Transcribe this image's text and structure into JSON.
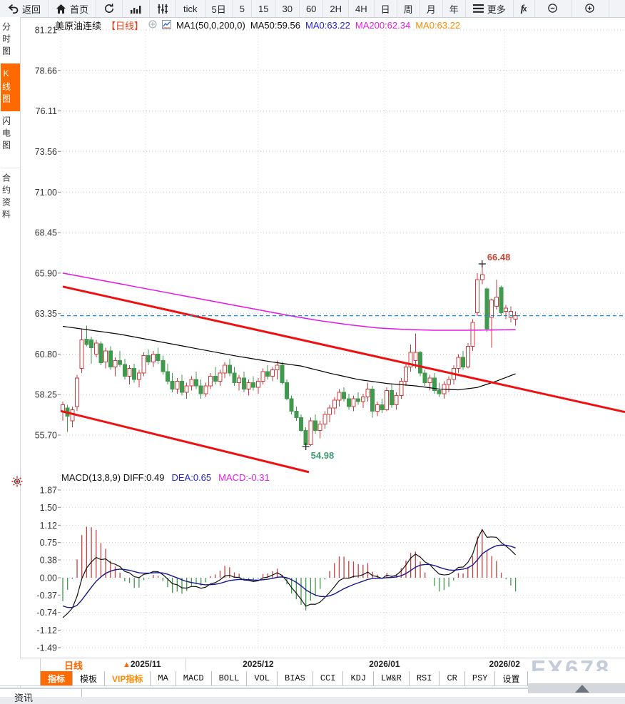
{
  "toolbar": {
    "items": [
      {
        "id": "back",
        "icon": "back-arrow-icon",
        "label": "返回"
      },
      {
        "id": "home",
        "icon": "home-icon",
        "label": "首页"
      },
      {
        "id": "refresh",
        "icon": "refresh-icon",
        "label": ""
      },
      {
        "id": "timeline-chart",
        "icon": "bar-chart-icon",
        "label": ""
      },
      {
        "id": "kline-chart",
        "icon": "candlestick-icon",
        "label": ""
      },
      {
        "id": "tick",
        "label": "tick"
      },
      {
        "id": "period-5d",
        "label": "5日"
      },
      {
        "id": "period-5",
        "label": "5"
      },
      {
        "id": "period-15",
        "label": "15"
      },
      {
        "id": "period-30",
        "label": "30"
      },
      {
        "id": "period-60",
        "label": "60"
      },
      {
        "id": "period-2h",
        "label": "2H"
      },
      {
        "id": "period-4h",
        "label": "4H"
      },
      {
        "id": "period-day",
        "label": "日"
      },
      {
        "id": "period-week",
        "label": "周"
      },
      {
        "id": "period-month",
        "label": "月"
      },
      {
        "id": "period-year",
        "label": "年"
      },
      {
        "id": "more",
        "icon": "menu-icon",
        "label": "更多"
      },
      {
        "id": "fx",
        "icon": "fx-icon",
        "label": ""
      },
      {
        "id": "zoom-out",
        "icon": "zoom-out-icon",
        "label": ""
      },
      {
        "id": "zoom-in",
        "icon": "zoom-in-icon",
        "label": ""
      }
    ]
  },
  "sidebar": {
    "items": [
      {
        "id": "time-chart",
        "label": "分时图",
        "active": false,
        "gap": false
      },
      {
        "id": "kline-chart",
        "label": "K线图",
        "active": true,
        "gap": false
      },
      {
        "id": "flash-chart",
        "label": "闪电图",
        "active": false,
        "gap": false
      },
      {
        "id": "contract-info",
        "label": "合约资料",
        "active": false,
        "gap": true
      }
    ]
  },
  "legend": {
    "symbol": "美原油连续",
    "period": "【日线】",
    "ma_settings": "MA1(50,0,200,0)",
    "ma50": "MA50:59.56",
    "ma0_blue": "MA0:63.22",
    "ma200": "MA200:62.34",
    "ma0_orange": "MA0:63.22"
  },
  "macd_legend": {
    "title": "MACD(13,8,9) DIFF:0.49",
    "dea": "DEA:0.65",
    "macd": "MACD:-0.31"
  },
  "watermark": "FX678",
  "bottom": {
    "period_box": {
      "label": "日线",
      "arrow": "▲"
    },
    "partial_tab": "资讯",
    "tabs": [
      {
        "label": "指标",
        "active": true,
        "vip": false,
        "en": false
      },
      {
        "label": "模板",
        "active": false,
        "vip": false,
        "en": false
      },
      {
        "label": "VIP指标",
        "active": false,
        "vip": true,
        "en": false
      },
      {
        "label": "MA",
        "active": false,
        "vip": false,
        "en": true
      },
      {
        "label": "MACD",
        "active": false,
        "vip": false,
        "en": true
      },
      {
        "label": "BOLL",
        "active": false,
        "vip": false,
        "en": true
      },
      {
        "label": "VOL",
        "active": false,
        "vip": false,
        "en": true
      },
      {
        "label": "BIAS",
        "active": false,
        "vip": false,
        "en": true
      },
      {
        "label": "CCI",
        "active": false,
        "vip": false,
        "en": true
      },
      {
        "label": "KDJ",
        "active": false,
        "vip": false,
        "en": true
      },
      {
        "label": "LW&R",
        "active": false,
        "vip": false,
        "en": true
      },
      {
        "label": "RSI",
        "active": false,
        "vip": false,
        "en": true
      },
      {
        "label": "CR",
        "active": false,
        "vip": false,
        "en": true
      },
      {
        "label": "PSY",
        "active": false,
        "vip": false,
        "en": true
      },
      {
        "label": "设置",
        "active": false,
        "vip": false,
        "en": false
      }
    ]
  },
  "chart_data": {
    "type": "candlestick",
    "symbol": "美原油连续",
    "period": "日线",
    "up_color": "#cf3b3b",
    "down_color": "#3f9a4d",
    "grid": true,
    "y_ticks": [
      81.21,
      78.66,
      76.11,
      73.56,
      71.0,
      68.45,
      65.9,
      63.35,
      60.8,
      58.25,
      55.7
    ],
    "x_ticks": [
      {
        "label": "2025/11",
        "i": 17.4
      },
      {
        "label": "2025/12",
        "i": 41.0
      },
      {
        "label": "2026/01",
        "i": 67.5
      },
      {
        "label": "2026/02",
        "i": 92.7
      }
    ],
    "candles": [
      [
        57.2,
        57.8,
        56.6,
        57.6
      ],
      [
        57.4,
        57.6,
        55.9,
        56.9
      ],
      [
        56.6,
        57.5,
        56.2,
        57.3
      ],
      [
        57.5,
        59.5,
        57.2,
        59.3
      ],
      [
        59.9,
        62.4,
        59.6,
        61.7
      ],
      [
        61.75,
        62.6,
        61.3,
        61.4
      ],
      [
        61.7,
        61.9,
        60.2,
        61.2
      ],
      [
        60.8,
        61.7,
        60.6,
        61.5
      ],
      [
        61.45,
        61.6,
        60.1,
        60.25
      ],
      [
        60.3,
        61.2,
        59.9,
        61.0
      ],
      [
        61.0,
        61.3,
        59.8,
        60.0
      ],
      [
        60.0,
        60.6,
        59.4,
        60.4
      ],
      [
        60.4,
        61.0,
        60.0,
        60.15
      ],
      [
        60.15,
        60.5,
        59.2,
        59.4
      ],
      [
        59.4,
        60.1,
        58.9,
        59.9
      ],
      [
        59.9,
        60.2,
        59.0,
        59.2
      ],
      [
        59.2,
        59.8,
        58.7,
        59.6
      ],
      [
        59.6,
        60.9,
        59.4,
        60.7
      ],
      [
        60.7,
        61.1,
        60.1,
        60.3
      ],
      [
        60.3,
        61.0,
        60.0,
        60.8
      ],
      [
        60.8,
        61.2,
        60.2,
        60.4
      ],
      [
        60.4,
        60.7,
        59.5,
        59.7
      ],
      [
        59.7,
        60.2,
        58.9,
        59.1
      ],
      [
        59.1,
        59.6,
        58.4,
        58.6
      ],
      [
        58.6,
        59.3,
        58.3,
        59.1
      ],
      [
        59.1,
        59.5,
        58.2,
        58.4
      ],
      [
        58.4,
        59.0,
        58.0,
        58.8
      ],
      [
        58.8,
        59.4,
        58.5,
        59.2
      ],
      [
        59.2,
        59.7,
        58.6,
        58.8
      ],
      [
        58.8,
        59.2,
        58.0,
        58.3
      ],
      [
        58.3,
        59.0,
        58.1,
        58.8
      ],
      [
        58.8,
        59.6,
        58.6,
        59.4
      ],
      [
        59.4,
        60.0,
        58.9,
        59.1
      ],
      [
        59.1,
        59.8,
        58.8,
        59.6
      ],
      [
        59.6,
        60.3,
        59.3,
        60.1
      ],
      [
        60.1,
        60.5,
        59.4,
        59.6
      ],
      [
        59.6,
        60.0,
        58.8,
        59.0
      ],
      [
        59.0,
        59.5,
        58.5,
        59.3
      ],
      [
        59.3,
        59.7,
        58.4,
        58.6
      ],
      [
        58.6,
        59.2,
        58.2,
        59.0
      ],
      [
        59.0,
        59.4,
        58.5,
        58.7
      ],
      [
        58.7,
        59.3,
        58.3,
        59.1
      ],
      [
        59.1,
        59.9,
        58.9,
        59.7
      ],
      [
        59.7,
        60.1,
        59.2,
        59.4
      ],
      [
        59.4,
        60.0,
        59.1,
        59.8
      ],
      [
        59.8,
        60.4,
        59.2,
        60.1
      ],
      [
        60.1,
        60.3,
        58.9,
        59.0
      ],
      [
        59.0,
        59.2,
        57.9,
        58.0
      ],
      [
        58.0,
        58.2,
        57.0,
        57.2
      ],
      [
        57.2,
        57.5,
        56.6,
        56.8
      ],
      [
        56.8,
        57.0,
        55.9,
        56.0
      ],
      [
        56.0,
        56.2,
        54.98,
        55.1
      ],
      [
        55.1,
        56.8,
        55.0,
        56.6
      ],
      [
        56.6,
        57.0,
        55.8,
        56.0
      ],
      [
        56.0,
        56.6,
        55.5,
        56.4
      ],
      [
        56.4,
        57.2,
        56.1,
        57.0
      ],
      [
        57.0,
        57.6,
        56.5,
        57.4
      ],
      [
        57.4,
        58.1,
        57.0,
        57.9
      ],
      [
        57.9,
        58.6,
        57.5,
        58.4
      ],
      [
        58.4,
        58.7,
        57.8,
        58.0
      ],
      [
        58.0,
        58.3,
        57.3,
        57.5
      ],
      [
        57.5,
        58.2,
        57.2,
        58.0
      ],
      [
        58.0,
        58.4,
        57.6,
        57.8
      ],
      [
        57.8,
        58.3,
        57.4,
        58.1
      ],
      [
        58.1,
        59.0,
        57.8,
        58.6
      ],
      [
        58.6,
        58.8,
        56.8,
        57.2
      ],
      [
        57.2,
        57.8,
        56.9,
        57.6
      ],
      [
        57.6,
        58.0,
        57.1,
        57.3
      ],
      [
        57.3,
        58.7,
        57.2,
        58.5
      ],
      [
        58.5,
        58.9,
        57.4,
        57.6
      ],
      [
        57.6,
        58.4,
        57.3,
        58.2
      ],
      [
        58.2,
        59.3,
        58.0,
        59.1
      ],
      [
        59.1,
        60.2,
        58.8,
        60.0
      ],
      [
        60.0,
        61.4,
        59.7,
        60.9
      ],
      [
        60.4,
        62.1,
        59.9,
        60.9
      ],
      [
        60.9,
        61.0,
        59.4,
        59.6
      ],
      [
        59.6,
        59.8,
        58.8,
        59.0
      ],
      [
        59.0,
        59.5,
        58.5,
        59.3
      ],
      [
        59.3,
        59.6,
        58.3,
        58.5
      ],
      [
        58.5,
        59.0,
        58.1,
        58.3
      ],
      [
        58.3,
        59.1,
        58.0,
        58.9
      ],
      [
        58.9,
        59.4,
        58.4,
        59.2
      ],
      [
        59.2,
        60.1,
        58.9,
        59.9
      ],
      [
        59.9,
        60.8,
        59.6,
        60.6
      ],
      [
        60.6,
        61.0,
        59.8,
        60.0
      ],
      [
        60.0,
        61.5,
        59.9,
        61.3
      ],
      [
        61.3,
        63.0,
        61.0,
        62.8
      ],
      [
        63.4,
        65.9,
        63.2,
        65.5
      ],
      [
        65.5,
        66.48,
        65.2,
        65.8
      ],
      [
        64.9,
        65.0,
        62.2,
        62.4
      ],
      [
        63.1,
        64.3,
        61.2,
        64.2
      ],
      [
        63.8,
        65.5,
        63.6,
        64.4
      ],
      [
        65.0,
        65.1,
        63.2,
        63.4
      ],
      [
        63.5,
        63.9,
        63.0,
        63.7
      ],
      [
        63.1,
        63.8,
        62.8,
        63.5
      ],
      [
        63.0,
        63.5,
        62.6,
        63.22
      ]
    ],
    "ma50": {
      "name": "MA50",
      "color": "#000000",
      "points": [
        [
          0,
          62.55
        ],
        [
          6,
          62.3
        ],
        [
          12,
          62.05
        ],
        [
          20,
          61.6
        ],
        [
          28,
          61.15
        ],
        [
          36,
          60.7
        ],
        [
          44,
          60.3
        ],
        [
          50,
          60.05
        ],
        [
          56,
          59.6
        ],
        [
          62,
          59.2
        ],
        [
          68,
          58.95
        ],
        [
          74,
          58.8
        ],
        [
          79,
          58.6
        ],
        [
          83,
          58.55
        ],
        [
          87,
          58.7
        ],
        [
          91,
          59.1
        ],
        [
          95,
          59.56
        ]
      ]
    },
    "ma200": {
      "name": "MA200",
      "color": "#e614e6",
      "points": [
        [
          0,
          65.9
        ],
        [
          8,
          65.45
        ],
        [
          16,
          65.0
        ],
        [
          24,
          64.55
        ],
        [
          32,
          64.1
        ],
        [
          40,
          63.65
        ],
        [
          48,
          63.2
        ],
        [
          54,
          62.9
        ],
        [
          60,
          62.65
        ],
        [
          66,
          62.45
        ],
        [
          72,
          62.35
        ],
        [
          78,
          62.3
        ],
        [
          84,
          62.3
        ],
        [
          90,
          62.32
        ],
        [
          95,
          62.34
        ]
      ]
    },
    "trendlines": [
      {
        "x1": 88,
        "p1": 65.05,
        "x2": 876,
        "p2": 57.15,
        "color": "#ee1111",
        "width": 3
      },
      {
        "x1": 85,
        "p1": 57.22,
        "x2": 433,
        "p2": 53.37,
        "color": "#ee1111",
        "width": 3
      }
    ],
    "last_price_line": {
      "price": 63.22,
      "color": "#1e88d2"
    },
    "annotations": [
      {
        "type": "high",
        "candle": 88,
        "price": 66.48,
        "label": "66.48",
        "color": "#cc4433"
      },
      {
        "type": "low",
        "candle": 51,
        "price": 54.98,
        "label": "54.98",
        "color": "#3d9b70"
      }
    ],
    "macd": {
      "params": [
        13,
        8,
        9
      ],
      "y_ticks": [
        1.87,
        1.5,
        1.12,
        0.75,
        0.38,
        0.0,
        -0.37,
        -0.74,
        -1.12,
        -1.49
      ],
      "diff": 0.49,
      "dea": 0.65,
      "bar": -0.31,
      "seed": {
        "ema_s": 57.32,
        "ema_l": 58.17,
        "dea": -0.6
      },
      "colors": {
        "diff": "#111111",
        "dea": "#16168e",
        "up": "#c24040",
        "down": "#3f9a4d"
      }
    }
  }
}
